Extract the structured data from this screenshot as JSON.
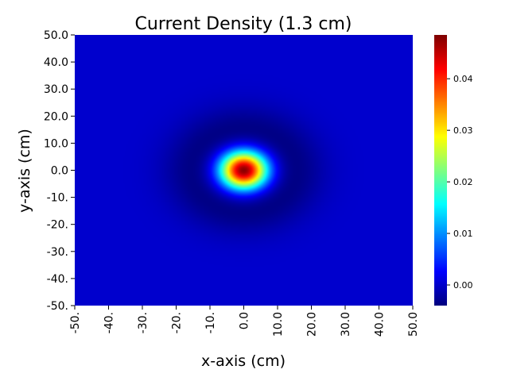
{
  "chart_data": {
    "type": "heatmap",
    "title": "Current Density (1.3 cm)",
    "xlabel": "x-axis (cm)",
    "ylabel": "y-axis (cm)",
    "x_tick_labels": [
      "-50.",
      "-40.",
      "-30.",
      "-20.",
      "-10.",
      "0.0",
      "10.0",
      "20.0",
      "30.0",
      "40.0",
      "50.0"
    ],
    "y_tick_labels": [
      "50.0",
      "40.0",
      "30.0",
      "20.0",
      "10.0",
      "0.0",
      "-10.",
      "-20.",
      "-30.",
      "-40.",
      "-50."
    ],
    "xlim": [
      -50,
      50
    ],
    "ylim": [
      -50,
      50
    ],
    "colormap": "jet",
    "colorbar": {
      "range": [
        -0.004,
        0.0485
      ],
      "ticks": [
        0.0,
        0.01,
        0.02,
        0.03,
        0.04
      ],
      "tick_labels": [
        "0.00",
        "0.01",
        "0.02",
        "0.03",
        "0.04"
      ]
    },
    "field": {
      "description_values": "radially symmetric peak centered at origin with surrounding negative ring",
      "center": [
        0,
        0
      ],
      "peak_value": 0.0485,
      "peak_sigma_cm": 4.8,
      "negative_ring_value": -0.004,
      "negative_ring_radius_cm": 14,
      "negative_ring_width_cm": 7,
      "background_value": 0.0
    },
    "grid": false
  }
}
